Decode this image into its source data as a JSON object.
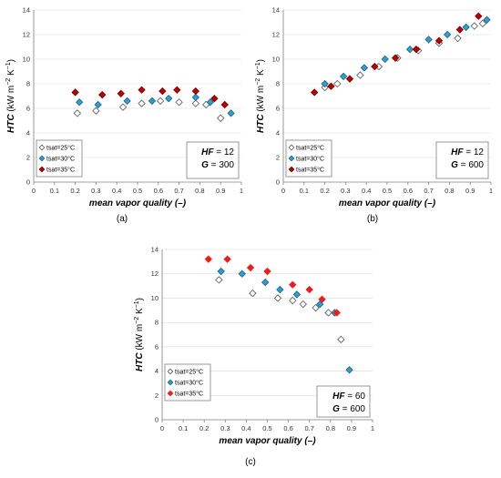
{
  "chart_data": [
    {
      "type": "scatter",
      "caption": "(a)",
      "xlabel": "mean vapor quality (–)",
      "ylabel": {
        "prefix": "HTC",
        "unit": " (kW m",
        "exp1": "−2",
        "mid": " K",
        "exp2": "−1",
        "close": ")"
      },
      "xlim": [
        0,
        1
      ],
      "ylim": [
        0,
        14
      ],
      "xticks": [
        "0",
        "0.1",
        "0.2",
        "0.3",
        "0.4",
        "0.5",
        "0.6",
        "0.7",
        "0.8",
        "0.9",
        "1"
      ],
      "yticks": [
        "0",
        "2",
        "4",
        "6",
        "8",
        "10",
        "12",
        "14"
      ],
      "grid": "horizontal",
      "legend_position": "bottom-left",
      "annotation": [
        {
          "label": "HF",
          "eq": " = ",
          "value": "12"
        },
        {
          "label": "G",
          "eq": " = ",
          "value": "300"
        }
      ],
      "series": [
        {
          "name": "tsat=25°C",
          "color": "#ffffff",
          "edge": "#555555",
          "x": [
            0.21,
            0.3,
            0.43,
            0.52,
            0.61,
            0.7,
            0.78,
            0.83,
            0.9
          ],
          "y": [
            5.6,
            5.8,
            6.1,
            6.4,
            6.6,
            6.5,
            6.4,
            6.3,
            5.2
          ]
        },
        {
          "name": "tsat=30°C",
          "color": "#2e9fd6",
          "edge": "#1f5f7a",
          "x": [
            0.22,
            0.31,
            0.45,
            0.57,
            0.65,
            0.78,
            0.85,
            0.95
          ],
          "y": [
            6.5,
            6.3,
            6.6,
            6.6,
            6.8,
            6.9,
            6.5,
            5.6
          ]
        },
        {
          "name": "tsat=35°C",
          "color": "#c00000",
          "edge": "#6e0000",
          "x": [
            0.2,
            0.33,
            0.42,
            0.52,
            0.62,
            0.69,
            0.78,
            0.87,
            0.92
          ],
          "y": [
            7.3,
            7.1,
            7.2,
            7.5,
            7.4,
            7.5,
            7.4,
            6.8,
            6.3
          ]
        }
      ]
    },
    {
      "type": "scatter",
      "caption": "(b)",
      "xlabel": "mean vapor quality (–)",
      "ylabel": {
        "prefix": "HTC",
        "unit": " (kW m",
        "exp1": "−2",
        "mid": " K",
        "exp2": "−1",
        "close": ")"
      },
      "xlim": [
        0,
        1
      ],
      "ylim": [
        0,
        14
      ],
      "xticks": [
        "0",
        "0.1",
        "0.2",
        "0.3",
        "0.4",
        "0.5",
        "0.6",
        "0.7",
        "0.8",
        "0.9",
        "1"
      ],
      "yticks": [
        "0",
        "2",
        "4",
        "6",
        "8",
        "10",
        "12",
        "14"
      ],
      "grid": "horizontal",
      "legend_position": "bottom-left",
      "annotation": [
        {
          "label": "HF",
          "eq": " = ",
          "value": "12"
        },
        {
          "label": "G",
          "eq": " = ",
          "value": "600"
        }
      ],
      "series": [
        {
          "name": "tsat=25°C",
          "color": "#ffffff",
          "edge": "#555555",
          "x": [
            0.2,
            0.26,
            0.37,
            0.46,
            0.55,
            0.65,
            0.75,
            0.84,
            0.92,
            0.96
          ],
          "y": [
            7.7,
            8.0,
            8.7,
            9.4,
            10.1,
            10.7,
            11.3,
            11.7,
            12.7,
            12.9
          ]
        },
        {
          "name": "tsat=30°C",
          "color": "#2e9fd6",
          "edge": "#1f5f7a",
          "x": [
            0.2,
            0.29,
            0.39,
            0.49,
            0.61,
            0.7,
            0.79,
            0.88,
            0.98
          ],
          "y": [
            8.0,
            8.6,
            9.3,
            10.0,
            10.8,
            11.6,
            12.0,
            12.6,
            13.2
          ]
        },
        {
          "name": "tsat=35°C",
          "color": "#c00000",
          "edge": "#6e0000",
          "x": [
            0.15,
            0.23,
            0.32,
            0.44,
            0.54,
            0.64,
            0.75,
            0.85,
            0.94
          ],
          "y": [
            7.3,
            7.8,
            8.4,
            9.4,
            10.1,
            10.8,
            11.5,
            12.4,
            13.5
          ]
        }
      ]
    },
    {
      "type": "scatter",
      "caption": "(c)",
      "xlabel": "mean vapor quality (–)",
      "ylabel": {
        "prefix": "HTC",
        "unit": " (kW m",
        "exp1": "−2",
        "mid": " K",
        "exp2": "−1",
        "close": ")"
      },
      "xlim": [
        0,
        1
      ],
      "ylim": [
        0,
        14
      ],
      "xticks": [
        "0",
        "0.1",
        "0.2",
        "0.3",
        "0.4",
        "0.5",
        "0.6",
        "0.7",
        "0.8",
        "0.9",
        "1"
      ],
      "yticks": [
        "0",
        "2",
        "4",
        "6",
        "8",
        "10",
        "12",
        "14"
      ],
      "grid": "horizontal",
      "legend_position": "bottom-left",
      "annotation": [
        {
          "label": "HF",
          "eq": " = ",
          "value": "60"
        },
        {
          "label": "G",
          "eq": " = ",
          "value": "600"
        }
      ],
      "series": [
        {
          "name": "tsat=25°C",
          "color": "#ffffff",
          "edge": "#555555",
          "x": [
            0.27,
            0.43,
            0.55,
            0.62,
            0.67,
            0.73,
            0.79,
            0.85
          ],
          "y": [
            11.5,
            10.4,
            10.0,
            9.8,
            9.5,
            9.2,
            8.8,
            6.6
          ]
        },
        {
          "name": "tsat=30°C",
          "color": "#2e9fd6",
          "edge": "#1f5f7a",
          "x": [
            0.28,
            0.38,
            0.49,
            0.56,
            0.64,
            0.75,
            0.82,
            0.89
          ],
          "y": [
            12.2,
            12.0,
            11.3,
            10.7,
            10.3,
            9.5,
            8.8,
            4.1
          ]
        },
        {
          "name": "tsat=35°C",
          "color": "#ee1c1c",
          "edge": "#ee1c1c",
          "x": [
            0.22,
            0.31,
            0.42,
            0.5,
            0.62,
            0.7,
            0.76,
            0.83
          ],
          "y": [
            13.2,
            13.2,
            12.5,
            12.2,
            11.1,
            10.7,
            9.9,
            8.8
          ]
        }
      ]
    }
  ]
}
